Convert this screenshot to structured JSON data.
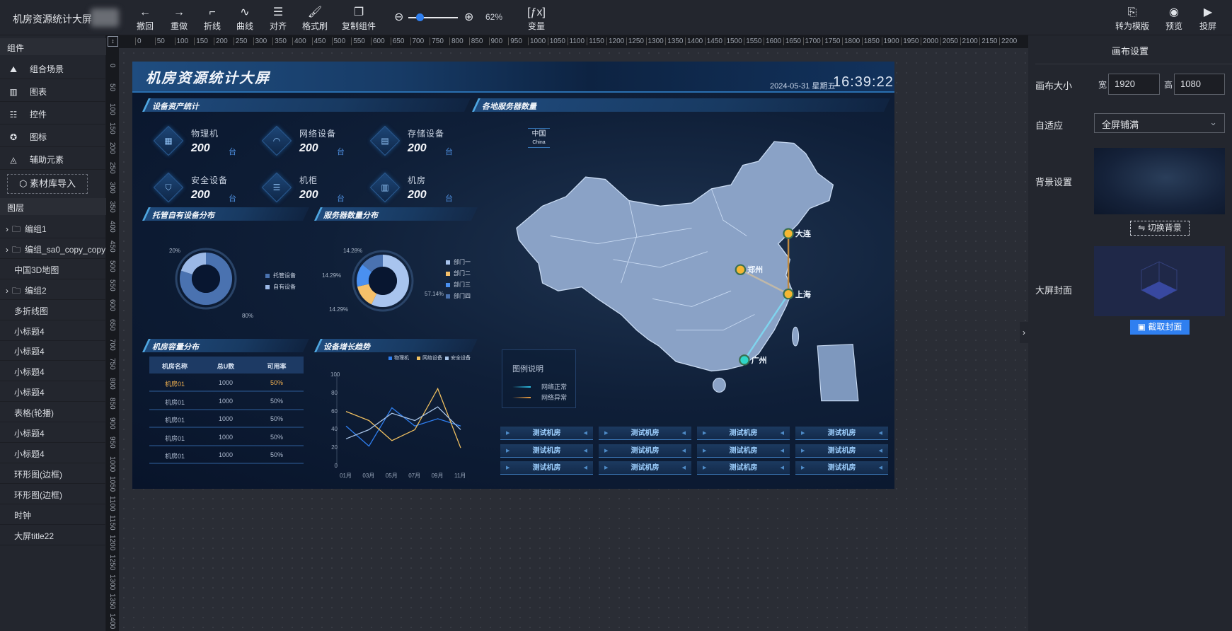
{
  "app": {
    "title": "机房资源统计大屏"
  },
  "toolbar": {
    "buttons": [
      {
        "label": "撤回",
        "icon": "undo-arrow-icon"
      },
      {
        "label": "重做",
        "icon": "redo-arrow-icon"
      },
      {
        "label": "折线",
        "icon": "polyline-icon"
      },
      {
        "label": "曲线",
        "icon": "curve-icon"
      },
      {
        "label": "对齐",
        "icon": "align-icon"
      },
      {
        "label": "格式刷",
        "icon": "format-brush-icon"
      },
      {
        "label": "复制组件",
        "icon": "copy-icon"
      }
    ],
    "zoom": {
      "value": "62%",
      "level": 62
    },
    "variable_label": "变量",
    "right_buttons": [
      {
        "label": "转为模版",
        "icon": "template-icon"
      },
      {
        "label": "预览",
        "icon": "eye-icon"
      },
      {
        "label": "投屏",
        "icon": "screen-cast-icon"
      }
    ]
  },
  "sidebar": {
    "components_header": "组件",
    "components": [
      {
        "label": "组合场景",
        "icon": "mountain-icon"
      },
      {
        "label": "图表",
        "icon": "bar-chart-icon"
      },
      {
        "label": "控件",
        "icon": "sliders-icon"
      },
      {
        "label": "图标",
        "icon": "star-circle-icon"
      },
      {
        "label": "辅助元素",
        "icon": "shapes-icon"
      }
    ],
    "import_label": "素材库导入",
    "layers_header": "图层",
    "layers": [
      {
        "label": "编组1",
        "group": true
      },
      {
        "label": "编组_sa0_copy_copy",
        "group": true
      },
      {
        "label": "中国3D地图",
        "group": false
      },
      {
        "label": "编组2",
        "group": true
      },
      {
        "label": "多折线图",
        "group": false
      },
      {
        "label": "小标题4",
        "group": false
      },
      {
        "label": "小标题4",
        "group": false
      },
      {
        "label": "小标题4",
        "group": false
      },
      {
        "label": "小标题4",
        "group": false
      },
      {
        "label": "表格(轮播)",
        "group": false
      },
      {
        "label": "小标题4",
        "group": false
      },
      {
        "label": "小标题4",
        "group": false
      },
      {
        "label": "环形图(边框)",
        "group": false
      },
      {
        "label": "环形图(边框)",
        "group": false
      },
      {
        "label": "时钟",
        "group": false
      },
      {
        "label": "大屏title22",
        "group": false
      }
    ]
  },
  "ruler": {
    "x_labels": [
      "0",
      "50",
      "100",
      "150",
      "200",
      "250",
      "300",
      "350",
      "400",
      "450",
      "500",
      "550",
      "600",
      "650",
      "700",
      "750",
      "800",
      "850",
      "900",
      "950",
      "1000",
      "1050",
      "1100",
      "1150",
      "1200",
      "1250",
      "1300",
      "1350",
      "1400",
      "1450",
      "1500",
      "1550",
      "1600",
      "1650",
      "1700",
      "1750",
      "1800",
      "1850",
      "1900",
      "1950",
      "2000",
      "2050",
      "2100",
      "2150",
      "2200"
    ],
    "y_labels": [
      "0",
      "50",
      "100",
      "150",
      "200",
      "250",
      "300",
      "350",
      "400",
      "450",
      "500",
      "550",
      "600",
      "650",
      "700",
      "750",
      "800",
      "850",
      "900",
      "950",
      "1000",
      "1050",
      "1100",
      "1150",
      "1200",
      "1250",
      "1300",
      "1350",
      "1400"
    ]
  },
  "dashboard": {
    "title": "机房资源统计大屏",
    "date": "2024-05-31 星期五",
    "time": "16:39:22",
    "sections": {
      "assets": "设备资产统计",
      "map": "各地服务器数量",
      "hosting": "托管自有设备分布",
      "servers": "服务器数量分布",
      "capacity": "机房容量分布",
      "trend": "设备增长趋势"
    },
    "cards": [
      {
        "label": "物理机",
        "value": "200",
        "unit": "台",
        "icon": "server-icon"
      },
      {
        "label": "网络设备",
        "value": "200",
        "unit": "台",
        "icon": "wifi-icon"
      },
      {
        "label": "存储设备",
        "value": "200",
        "unit": "台",
        "icon": "storage-icon"
      },
      {
        "label": "安全设备",
        "value": "200",
        "unit": "台",
        "icon": "shield-icon"
      },
      {
        "label": "机柜",
        "value": "200",
        "unit": "台",
        "icon": "cabinet-icon"
      },
      {
        "label": "机房",
        "value": "200",
        "unit": "台",
        "icon": "building-icon"
      }
    ],
    "table": {
      "headers": [
        "机房名称",
        "总U数",
        "可用率"
      ],
      "rows": [
        [
          "机房01",
          "1000",
          "50%"
        ],
        [
          "机房01",
          "1000",
          "50%"
        ],
        [
          "机房01",
          "1000",
          "50%"
        ],
        [
          "机房01",
          "1000",
          "50%"
        ],
        [
          "机房01",
          "1000",
          "50%"
        ]
      ],
      "highlight_color": "#f0b050"
    },
    "map": {
      "country": "中国",
      "country_en": "China",
      "cities": [
        {
          "name": "大连",
          "color": "#f5b731"
        },
        {
          "name": "郑州",
          "color": "#f5b731"
        },
        {
          "name": "上海",
          "color": "#f5b731"
        },
        {
          "name": "广州",
          "color": "#2fd6c8"
        }
      ],
      "routes": [
        {
          "from": "大连",
          "to": "上海",
          "status": "异常"
        },
        {
          "from": "郑州",
          "to": "上海",
          "status": "异常"
        },
        {
          "from": "广州",
          "to": "上海",
          "status": "正常"
        }
      ],
      "legend_title": "图例说明",
      "legend": [
        {
          "label": "网络正常",
          "color": "#2fc3e8"
        },
        {
          "label": "网络异常",
          "color": "#f0a040"
        }
      ],
      "buttons": [
        "测试机房",
        "测试机房",
        "测试机房",
        "测试机房",
        "测试机房",
        "测试机房",
        "测试机房",
        "测试机房",
        "测试机房",
        "测试机房",
        "测试机房",
        "测试机房"
      ]
    }
  },
  "chart_data": [
    {
      "type": "pie",
      "donut": true,
      "series": [
        {
          "name": "托管设备",
          "value": 80,
          "color": "#4a72b0"
        },
        {
          "name": "自有设备",
          "value": 20,
          "color": "#9bb8e6"
        }
      ],
      "labels": [
        "80%",
        "20%"
      ],
      "legend_placement": "right"
    },
    {
      "type": "pie",
      "donut": true,
      "series": [
        {
          "name": "部门一",
          "value": 57.14,
          "color": "#a8c4ee"
        },
        {
          "name": "部门二",
          "value": 14.29,
          "color": "#f5c06a"
        },
        {
          "name": "部门三",
          "value": 14.29,
          "color": "#4a90f0"
        },
        {
          "name": "部门四",
          "value": 14.28,
          "color": "#4a72b0"
        }
      ],
      "labels": [
        "57.14%",
        "14.29%",
        "14.29%",
        "14.28%"
      ],
      "legend_placement": "right"
    },
    {
      "type": "line",
      "categories": [
        "01月",
        "03月",
        "05月",
        "07月",
        "09月",
        "11月"
      ],
      "series": [
        {
          "name": "物理机",
          "values": [
            44,
            22,
            64,
            44,
            52,
            44
          ],
          "color": "#2f7ff0"
        },
        {
          "name": "网络设备",
          "values": [
            60,
            50,
            28,
            40,
            85,
            20
          ],
          "color": "#f0c060"
        },
        {
          "name": "安全设备",
          "values": [
            30,
            40,
            58,
            50,
            65,
            40
          ],
          "color": "#a8c4e8"
        }
      ],
      "ylim": [
        0,
        100
      ],
      "yticks": [
        "0",
        "20",
        "40",
        "60",
        "80",
        "100"
      ],
      "grid": false,
      "legend_placement": "top-right"
    }
  ],
  "panel": {
    "title": "画布设置",
    "size_label": "画布大小",
    "width_label": "宽",
    "width_value": "1920",
    "height_label": "高",
    "height_value": "1080",
    "fit_label": "自适应",
    "fit_value": "全屏铺满",
    "bg_label": "背景设置",
    "switch_bg": "切换背景",
    "cover_label": "大屏封面",
    "capture_cover": "截取封面"
  },
  "colors": {
    "accent": "#2f7ff0",
    "panel_bg": "#23262e",
    "canvas_bg": "#0f1f38"
  }
}
